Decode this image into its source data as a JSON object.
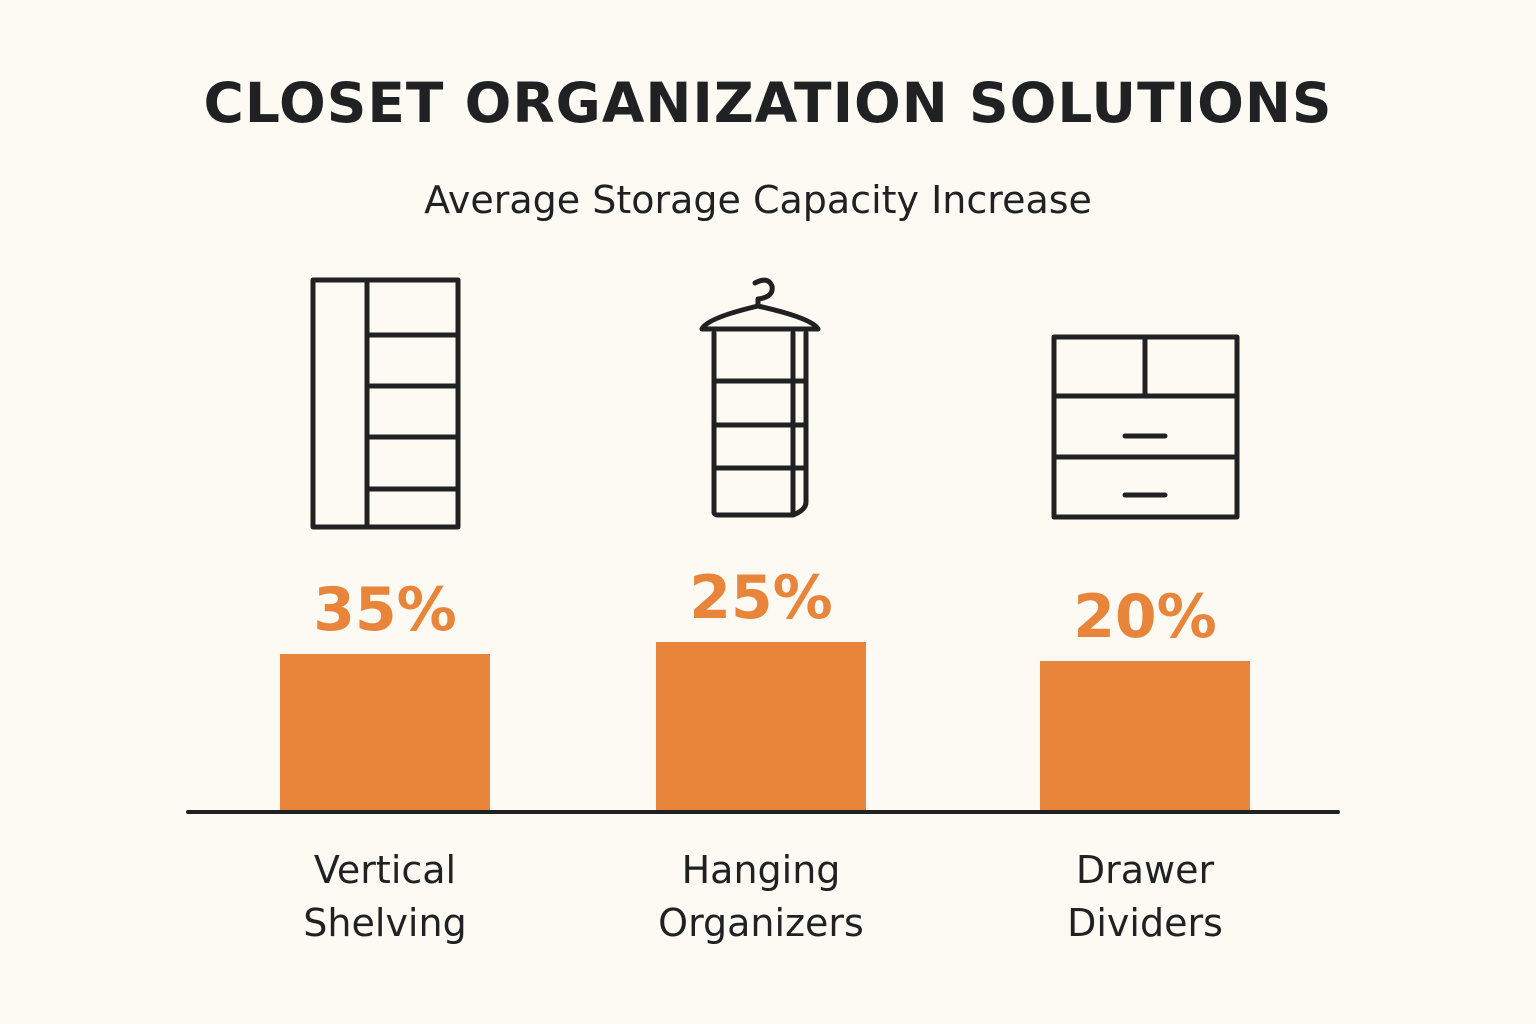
{
  "title": "CLOSET ORGANIZATION SOLUTIONS",
  "subtitle": "Average Storage Capacity Increase",
  "colors": {
    "bar": "#e8853a",
    "text": "#1f2123",
    "background": "#fdfaf3"
  },
  "chart_data": {
    "type": "bar",
    "title": "CLOSET ORGANIZATION SOLUTIONS",
    "subtitle": "Average Storage Capacity Increase",
    "categories": [
      [
        "Vertical",
        "Shelving"
      ],
      [
        "Hanging",
        "Organizers"
      ],
      [
        "Drawer",
        "Dividers"
      ]
    ],
    "values": [
      35,
      25,
      20
    ],
    "value_labels": [
      "35%",
      "25%",
      "20%"
    ],
    "icons": [
      "vertical-shelving-icon",
      "hanging-organizer-icon",
      "drawer-dividers-icon"
    ],
    "grid": false,
    "legend": "none"
  }
}
